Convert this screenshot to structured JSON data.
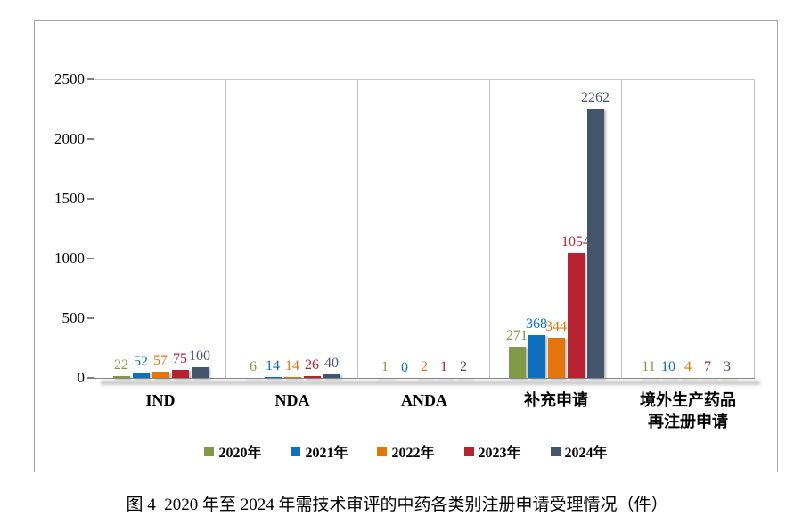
{
  "figure_caption": "图 4  2020 年至 2024 年需技术审评的中药各类别注册申请受理情况（件）",
  "chart_data": {
    "type": "bar",
    "title": "",
    "xlabel": "",
    "ylabel": "",
    "ylim": [
      0,
      2500
    ],
    "yticks": [
      0,
      500,
      1000,
      1500,
      2000,
      2500
    ],
    "grid": "vertical-category-separators",
    "legend_position": "bottom",
    "data_labels": true,
    "categories": [
      "IND",
      "NDA",
      "ANDA",
      "补充申请",
      "境外生产药品再注册申请"
    ],
    "category_label_lines": [
      [
        "IND"
      ],
      [
        "NDA"
      ],
      [
        "ANDA"
      ],
      [
        "补充申请"
      ],
      [
        "境外生产药品",
        "再注册申请"
      ]
    ],
    "series": [
      {
        "name": "2020年",
        "color": "#7f9a48",
        "values": [
          22,
          6,
          1,
          271,
          11
        ]
      },
      {
        "name": "2021年",
        "color": "#0e70bd",
        "values": [
          52,
          14,
          0,
          368,
          10
        ]
      },
      {
        "name": "2022年",
        "color": "#e2760d",
        "values": [
          57,
          14,
          2,
          344,
          4
        ]
      },
      {
        "name": "2023年",
        "color": "#b52230",
        "values": [
          75,
          26,
          1,
          1054,
          7
        ]
      },
      {
        "name": "2024年",
        "color": "#44546a",
        "values": [
          100,
          40,
          2,
          2262,
          3
        ]
      }
    ]
  },
  "colors": {
    "axis": "#7f7f7f",
    "separator": "#c6c6c6",
    "figure_border": "#a3a3a3",
    "shadow": "#cbcbcb"
  }
}
